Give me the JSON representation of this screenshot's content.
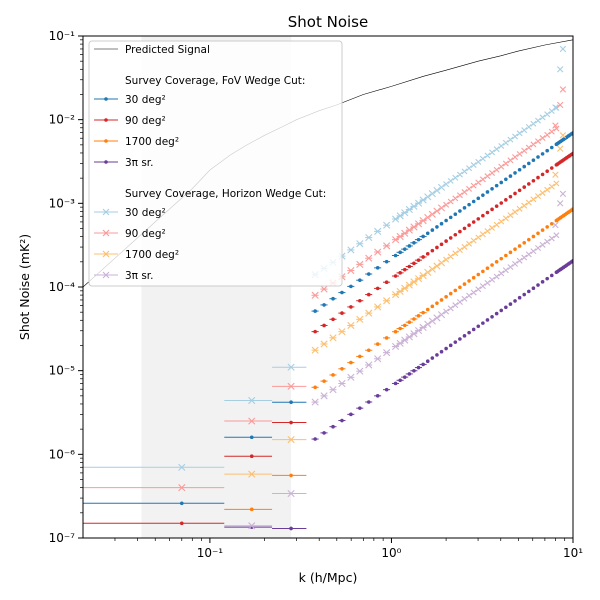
{
  "chart_data": {
    "type": "scatter",
    "title": "Shot Noise",
    "xlabel": "k (h/Mpc)",
    "ylabel": "Shot Noise (mK²)",
    "x_scale": "log",
    "y_scale": "log",
    "xlim": [
      0.02,
      10
    ],
    "ylim": [
      1e-07,
      0.1
    ],
    "xtick_labels": [
      "10⁻¹",
      "10⁰",
      "10¹"
    ],
    "ytick_labels": [
      "10⁻⁷",
      "10⁻⁶",
      "10⁻⁵",
      "10⁻⁴",
      "10⁻³",
      "10⁻²",
      "10⁻¹"
    ],
    "shaded_band": {
      "k_min": 0.042,
      "k_max": 0.28,
      "color": "#f2f2f2"
    },
    "legend": {
      "placement": "upper-left",
      "predicted_label": "Predicted Signal",
      "fov_title": "Survey Coverage, FoV Wedge Cut:",
      "horizon_title": "Survey Coverage, Horizon Wedge Cut:",
      "labels": [
        "30 deg²",
        "90 deg²",
        "1700 deg²",
        "3π sr."
      ]
    },
    "predicted_signal": {
      "name": "Predicted Signal",
      "color": "#000000",
      "x": [
        0.02,
        0.05,
        0.08,
        0.1,
        0.13,
        0.16,
        0.2,
        0.25,
        0.3,
        0.4,
        0.5,
        0.7,
        1.0,
        1.5,
        2,
        3,
        4,
        5,
        7,
        10
      ],
      "y": [
        0.0001,
        0.0006,
        0.0015,
        0.0025,
        0.0038,
        0.005,
        0.0065,
        0.0082,
        0.01,
        0.0128,
        0.015,
        0.02,
        0.025,
        0.033,
        0.039,
        0.05,
        0.058,
        0.066,
        0.078,
        0.09
      ]
    },
    "fov_series": [
      {
        "name": "30 deg²",
        "color": "#1f77b4",
        "first_bins": [
          [
            0.07,
            2.6e-07
          ],
          [
            0.17,
            1.6e-06
          ],
          [
            0.28,
            4.2e-06
          ]
        ],
        "power_law": {
          "k0": 1.0,
          "y0": 0.00022,
          "slope": 1.5
        }
      },
      {
        "name": "90 deg²",
        "color": "#d62728",
        "first_bins": [
          [
            0.07,
            1.5e-07
          ],
          [
            0.17,
            9.5e-07
          ],
          [
            0.28,
            2.4e-06
          ]
        ],
        "power_law": {
          "k0": 1.0,
          "y0": 0.000125,
          "slope": 1.5
        }
      },
      {
        "name": "1700 deg²",
        "color": "#ff7f0e",
        "first_bins": [
          [
            0.17,
            2.2e-07
          ],
          [
            0.28,
            5.6e-07
          ]
        ],
        "power_law": {
          "k0": 1.0,
          "y0": 2.7e-05,
          "slope": 1.5
        }
      },
      {
        "name": "3π sr.",
        "color": "#6a3d9a",
        "first_bins": [
          [
            0.17,
            1.35e-07
          ],
          [
            0.28,
            1.3e-07
          ]
        ],
        "power_law": {
          "k0": 1.0,
          "y0": 6.5e-06,
          "slope": 1.5
        }
      }
    ],
    "horizon_series": [
      {
        "name": "30 deg²",
        "color": "#a6cee3",
        "first_bins": [
          [
            0.07,
            7e-07
          ],
          [
            0.17,
            4.4e-06
          ],
          [
            0.28,
            1.1e-05
          ]
        ],
        "power_law": {
          "k0": 1.0,
          "y0": 0.0006,
          "slope": 1.5
        },
        "upturn": [
          [
            8.0,
            0.014
          ],
          [
            8.5,
            0.04
          ],
          [
            8.8,
            0.07
          ]
        ]
      },
      {
        "name": "90 deg²",
        "color": "#fb9a99",
        "first_bins": [
          [
            0.07,
            4e-07
          ],
          [
            0.17,
            2.5e-06
          ],
          [
            0.28,
            6.5e-06
          ]
        ],
        "power_law": {
          "k0": 1.0,
          "y0": 0.00034,
          "slope": 1.5
        },
        "upturn": [
          [
            8.0,
            0.0085
          ],
          [
            8.5,
            0.015
          ],
          [
            8.8,
            0.023
          ]
        ]
      },
      {
        "name": "1700 deg²",
        "color": "#fdbf6f",
        "first_bins": [
          [
            0.17,
            5.8e-07
          ],
          [
            0.28,
            1.5e-06
          ]
        ],
        "power_law": {
          "k0": 1.0,
          "y0": 7.5e-05,
          "slope": 1.5
        },
        "upturn": [
          [
            8.0,
            0.0022
          ],
          [
            8.5,
            0.0045
          ],
          [
            8.8,
            0.0065
          ]
        ]
      },
      {
        "name": "3π sr.",
        "color": "#cab2d6",
        "first_bins": [
          [
            0.17,
            1.4e-07
          ],
          [
            0.28,
            3.4e-07
          ]
        ],
        "power_law": {
          "k0": 1.0,
          "y0": 1.8e-05,
          "slope": 1.5
        },
        "upturn": [
          [
            8.0,
            0.00055
          ],
          [
            8.5,
            0.001
          ],
          [
            8.8,
            0.0013
          ]
        ]
      }
    ]
  }
}
